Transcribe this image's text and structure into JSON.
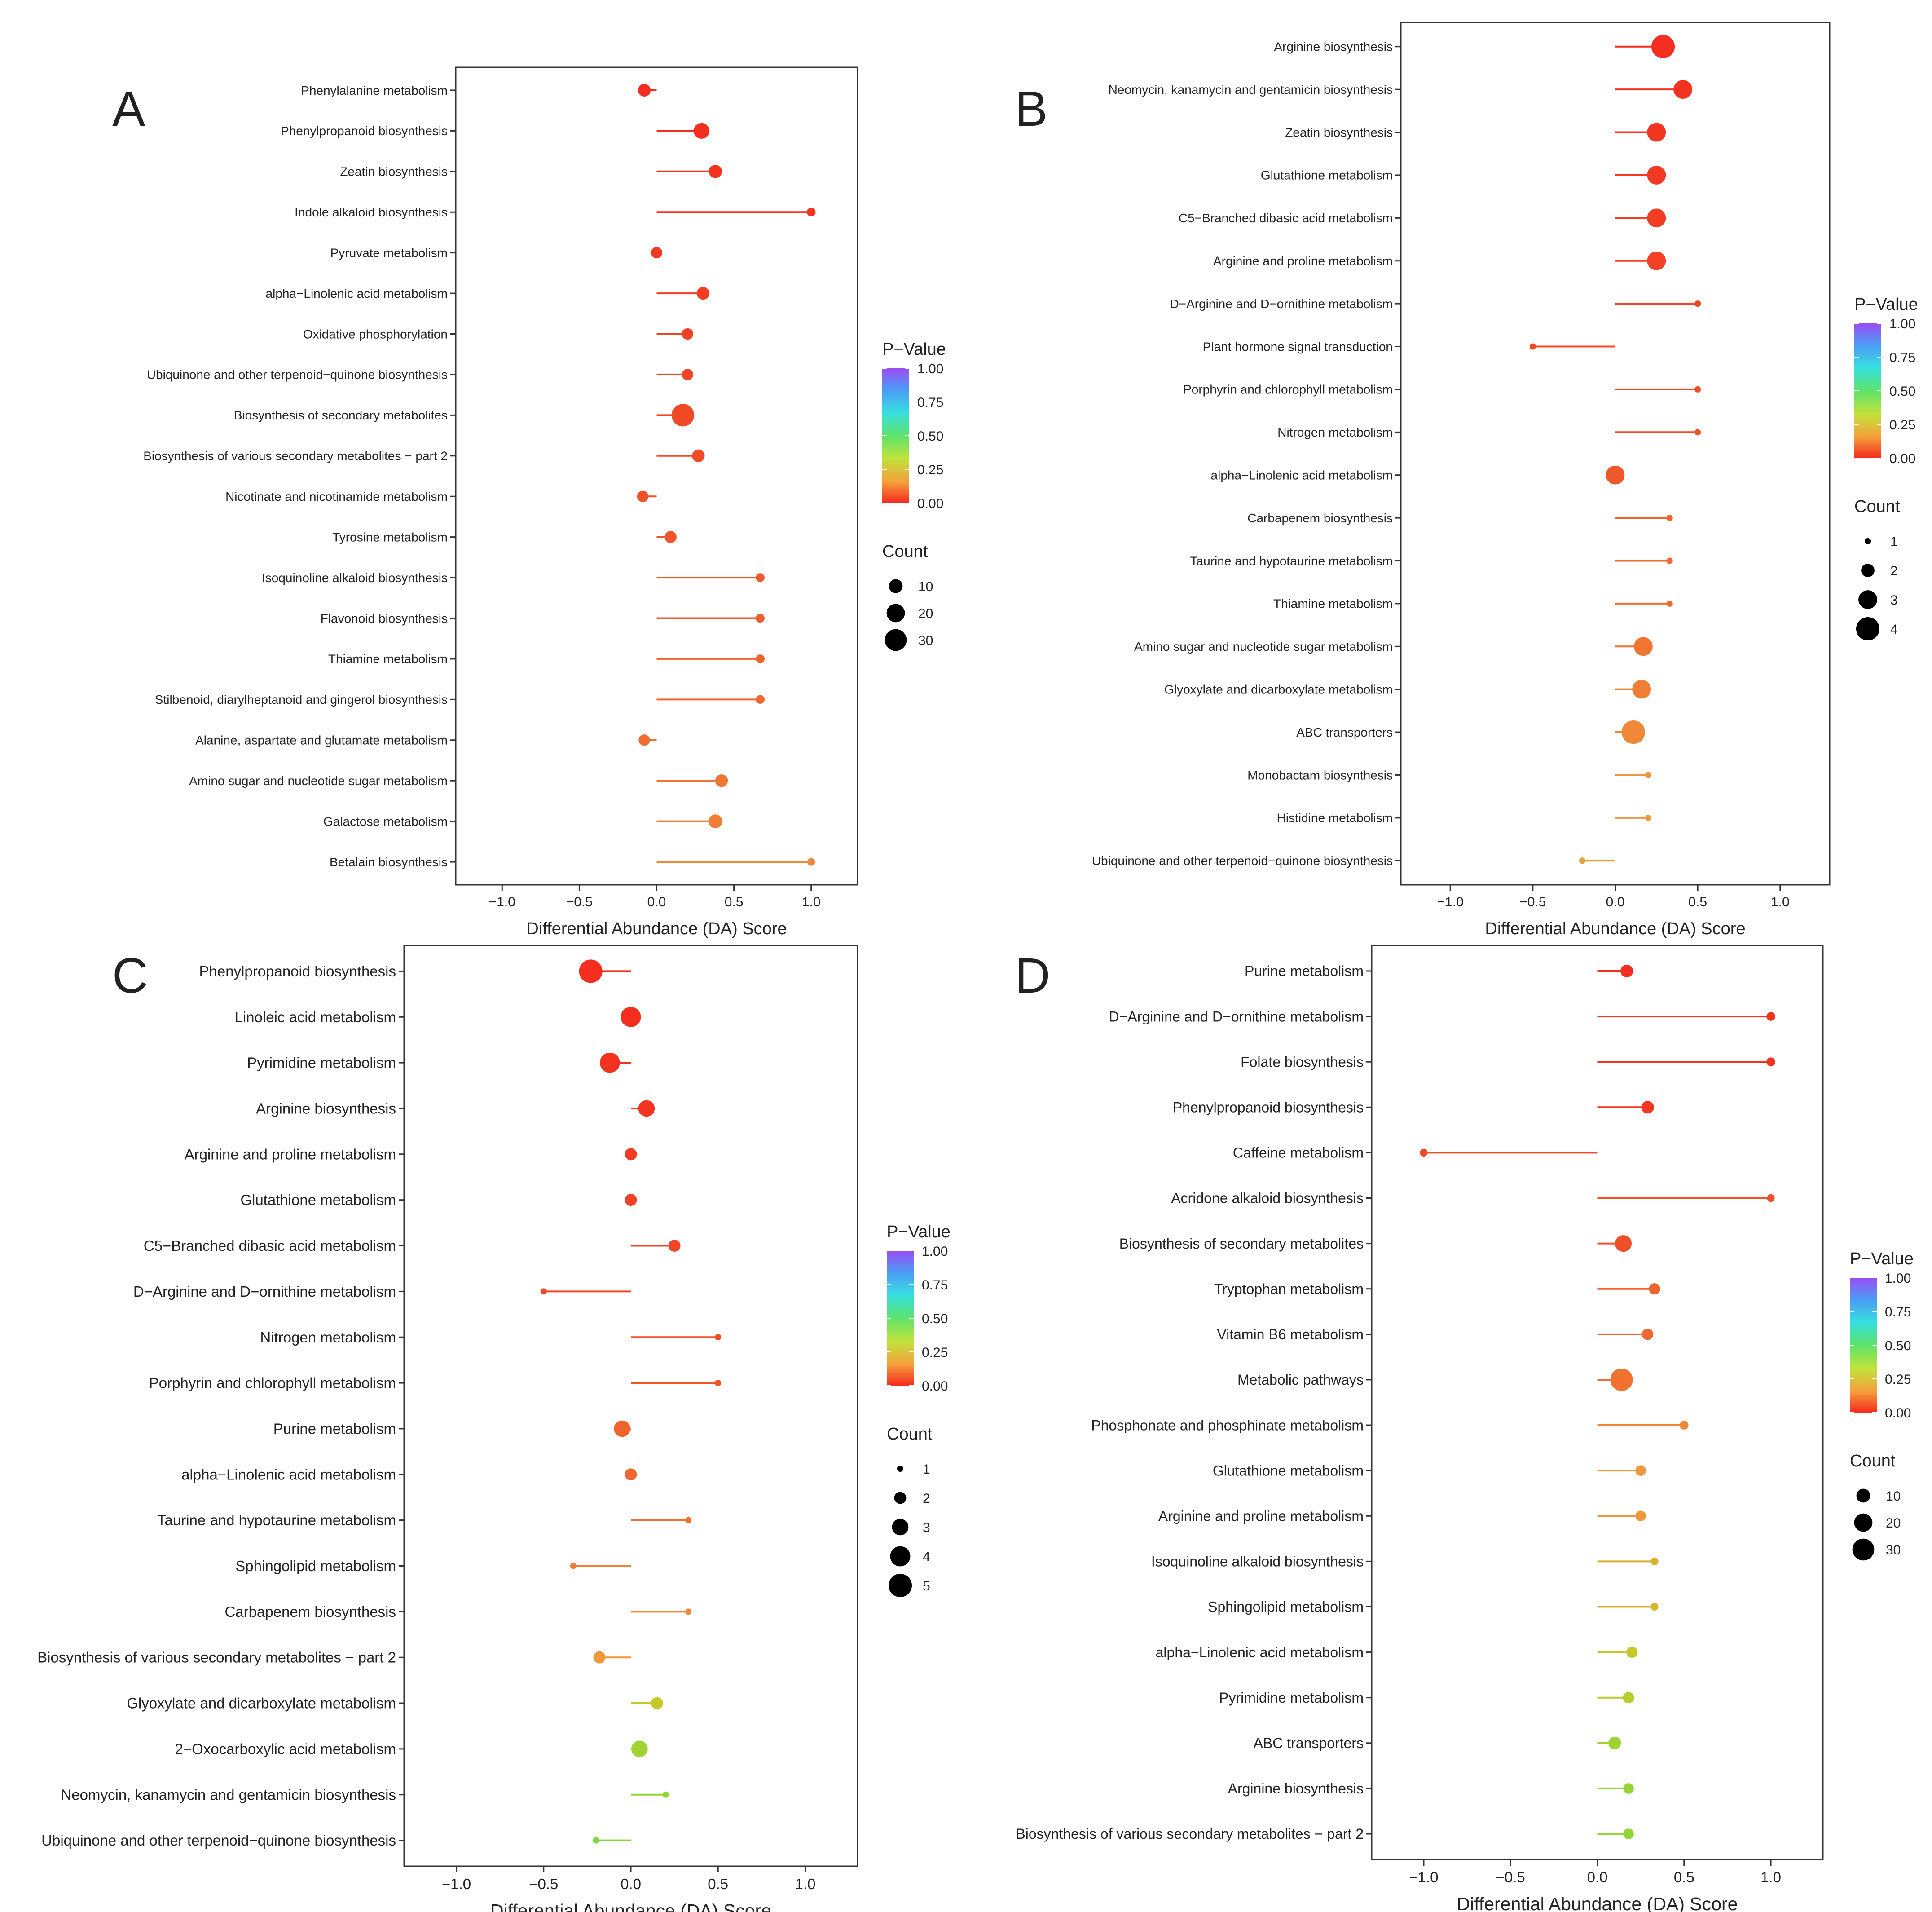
{
  "figure": {
    "shared_xlabel": "Differential Abundance (DA) Score",
    "legend_title_pvalue": "P−Value",
    "legend_title_count": "Count",
    "pvalue_ticks": [
      "1.00",
      "0.75",
      "0.50",
      "0.25",
      "0.00"
    ],
    "xtick_labels": [
      "−1.0",
      "−0.5",
      "0.0",
      "0.5",
      "1.0"
    ],
    "colorbar_colors": [
      "#9b4df5",
      "#4c9bf5",
      "#36e0e0",
      "#5de36b",
      "#c0e33b",
      "#f5a13b",
      "#f52a1e"
    ]
  },
  "chart_data": [
    {
      "type": "lollipop",
      "panel": "A",
      "xlabel": "Differential Abundance (DA) Score",
      "xlim": [
        -1.3,
        1.3
      ],
      "xticks": [
        -1.0,
        -0.5,
        0.0,
        0.5,
        1.0
      ],
      "count_legend": [
        "10",
        "20",
        "30"
      ],
      "count_legend_values": [
        10,
        20,
        30
      ],
      "count_range": [
        1,
        35
      ],
      "pathways": [
        "Phenylalanine metabolism",
        "Phenylpropanoid biosynthesis",
        "Zeatin biosynthesis",
        "Indole alkaloid biosynthesis",
        "Pyruvate metabolism",
        "alpha−Linolenic acid metabolism",
        "Oxidative phosphorylation",
        "Ubiquinone and other terpenoid−quinone biosynthesis",
        "Biosynthesis of secondary metabolites",
        "Biosynthesis of various secondary metabolites − part 2",
        "Nicotinate and nicotinamide metabolism",
        "Tyrosine metabolism",
        "Isoquinoline alkaloid biosynthesis",
        "Flavonoid biosynthesis",
        "Thiamine metabolism",
        "Stilbenoid, diarylheptanoid and gingerol biosynthesis",
        "Alanine, aspartate and glutamate metabolism",
        "Amino sugar and nucleotide sugar metabolism",
        "Galactose metabolism",
        "Betalain biosynthesis"
      ],
      "da_score": [
        -0.08,
        0.29,
        0.38,
        1.0,
        0.0,
        0.3,
        0.2,
        0.2,
        0.17,
        0.27,
        -0.09,
        0.09,
        0.67,
        0.67,
        0.67,
        0.67,
        -0.08,
        0.42,
        0.38,
        1.0
      ],
      "count": [
        8,
        14,
        9,
        3,
        6,
        8,
        6,
        6,
        32,
        8,
        6,
        7,
        3,
        3,
        3,
        3,
        6,
        8,
        10,
        2
      ],
      "p_value": [
        0.01,
        0.01,
        0.02,
        0.03,
        0.04,
        0.05,
        0.06,
        0.07,
        0.08,
        0.09,
        0.1,
        0.11,
        0.12,
        0.13,
        0.14,
        0.15,
        0.16,
        0.18,
        0.2,
        0.22
      ]
    },
    {
      "type": "lollipop",
      "panel": "B",
      "xlabel": "Differential Abundance (DA) Score",
      "xlim": [
        -1.3,
        1.3
      ],
      "xticks": [
        -1.0,
        -0.5,
        0.0,
        0.5,
        1.0
      ],
      "count_legend": [
        "1",
        "2",
        "3",
        "4"
      ],
      "count_legend_values": [
        1,
        2,
        3,
        4
      ],
      "count_range": [
        1,
        4
      ],
      "pathways": [
        "Arginine biosynthesis",
        "Neomycin, kanamycin and gentamicin biosynthesis",
        "Zeatin biosynthesis",
        "Glutathione metabolism",
        "C5−Branched dibasic acid metabolism",
        "Arginine and proline metabolism",
        "D−Arginine and D−ornithine metabolism",
        "Plant hormone signal transduction",
        "Porphyrin and chlorophyll metabolism",
        "Nitrogen metabolism",
        "alpha−Linolenic acid metabolism",
        "Carbapenem biosynthesis",
        "Taurine and hypotaurine metabolism",
        "Thiamine metabolism",
        "Amino sugar and nucleotide sugar metabolism",
        "Glyoxylate and dicarboxylate metabolism",
        "ABC transporters",
        "Monobactam biosynthesis",
        "Histidine metabolism",
        "Ubiquinone and other terpenoid−quinone biosynthesis"
      ],
      "da_score": [
        0.29,
        0.41,
        0.25,
        0.25,
        0.25,
        0.25,
        0.5,
        -0.5,
        0.5,
        0.5,
        0.0,
        0.33,
        0.33,
        0.33,
        0.17,
        0.16,
        0.11,
        0.2,
        0.2,
        -0.2
      ],
      "count": [
        4,
        3,
        3,
        3,
        3,
        3,
        1,
        1,
        1,
        1,
        3,
        1,
        1,
        1,
        3,
        3,
        4,
        1,
        1,
        1
      ],
      "p_value": [
        0.01,
        0.02,
        0.03,
        0.04,
        0.05,
        0.06,
        0.07,
        0.08,
        0.09,
        0.1,
        0.12,
        0.14,
        0.15,
        0.16,
        0.18,
        0.2,
        0.22,
        0.25,
        0.26,
        0.28
      ]
    },
    {
      "type": "lollipop",
      "panel": "C",
      "xlabel": "Differential Abundance (DA) Score",
      "xlim": [
        -1.3,
        1.3
      ],
      "xticks": [
        -1.0,
        -0.5,
        0.0,
        0.5,
        1.0
      ],
      "count_legend": [
        "1",
        "2",
        "3",
        "4",
        "5"
      ],
      "count_legend_values": [
        1,
        2,
        3,
        4,
        5
      ],
      "count_range": [
        1,
        5
      ],
      "pathways": [
        "Phenylpropanoid biosynthesis",
        "Linoleic acid metabolism",
        "Pyrimidine metabolism",
        "Arginine biosynthesis",
        "Arginine and proline metabolism",
        "Glutathione metabolism",
        "C5−Branched dibasic acid metabolism",
        "D−Arginine and D−ornithine metabolism",
        "Nitrogen metabolism",
        "Porphyrin and chlorophyll metabolism",
        "Purine metabolism",
        "alpha−Linolenic acid metabolism",
        "Taurine and hypotaurine metabolism",
        "Sphingolipid metabolism",
        "Carbapenem biosynthesis",
        "Biosynthesis of various secondary metabolites − part 2",
        "Glyoxylate and dicarboxylate metabolism",
        "2−Oxocarboxylic acid metabolism",
        "Neomycin, kanamycin and gentamicin biosynthesis",
        "Ubiquinone and other terpenoid−quinone biosynthesis"
      ],
      "da_score": [
        -0.23,
        0.0,
        -0.12,
        0.09,
        0.0,
        0.0,
        0.25,
        -0.5,
        0.5,
        0.5,
        -0.05,
        0.0,
        0.33,
        -0.33,
        0.33,
        -0.18,
        0.15,
        0.05,
        0.2,
        -0.2
      ],
      "count": [
        5,
        4,
        4,
        3,
        2,
        2,
        2,
        1,
        1,
        1,
        3,
        2,
        1,
        1,
        1,
        2,
        2,
        3,
        1,
        1
      ],
      "p_value": [
        0.01,
        0.01,
        0.02,
        0.03,
        0.05,
        0.06,
        0.07,
        0.08,
        0.1,
        0.11,
        0.14,
        0.15,
        0.17,
        0.2,
        0.22,
        0.26,
        0.4,
        0.45,
        0.47,
        0.5
      ]
    },
    {
      "type": "lollipop",
      "panel": "D",
      "xlabel": "Differential Abundance (DA) Score",
      "xlim": [
        -1.3,
        1.3
      ],
      "xticks": [
        -1.0,
        -0.5,
        0.0,
        0.5,
        1.0
      ],
      "count_legend": [
        "10",
        "20",
        "30"
      ],
      "count_legend_values": [
        10,
        20,
        30
      ],
      "count_range": [
        1,
        35
      ],
      "pathways": [
        "Purine metabolism",
        "D−Arginine and D−ornithine metabolism",
        "Folate biosynthesis",
        "Phenylpropanoid biosynthesis",
        "Caffeine metabolism",
        "Acridone alkaloid biosynthesis",
        "Biosynthesis of secondary metabolites",
        "Tryptophan metabolism",
        "Vitamin B6 metabolism",
        "Metabolic pathways",
        "Phosphonate and phosphinate metabolism",
        "Glutathione metabolism",
        "Arginine and proline metabolism",
        "Isoquinoline alkaloid biosynthesis",
        "Sphingolipid metabolism",
        "alpha−Linolenic acid metabolism",
        "Pyrimidine metabolism",
        "ABC transporters",
        "Arginine biosynthesis",
        "Biosynthesis of various secondary metabolites − part 2"
      ],
      "da_score": [
        0.17,
        1.0,
        1.0,
        0.29,
        -1.0,
        1.0,
        0.15,
        0.33,
        0.29,
        0.14,
        0.5,
        0.25,
        0.25,
        0.33,
        0.33,
        0.2,
        0.18,
        0.1,
        0.18,
        0.18
      ],
      "count": [
        8,
        3,
        3,
        8,
        2,
        2,
        16,
        6,
        6,
        32,
        3,
        5,
        5,
        2,
        2,
        6,
        6,
        8,
        5,
        5
      ],
      "p_value": [
        0.01,
        0.02,
        0.02,
        0.03,
        0.08,
        0.1,
        0.1,
        0.14,
        0.15,
        0.17,
        0.22,
        0.25,
        0.26,
        0.33,
        0.35,
        0.4,
        0.42,
        0.45,
        0.46,
        0.47
      ]
    }
  ]
}
